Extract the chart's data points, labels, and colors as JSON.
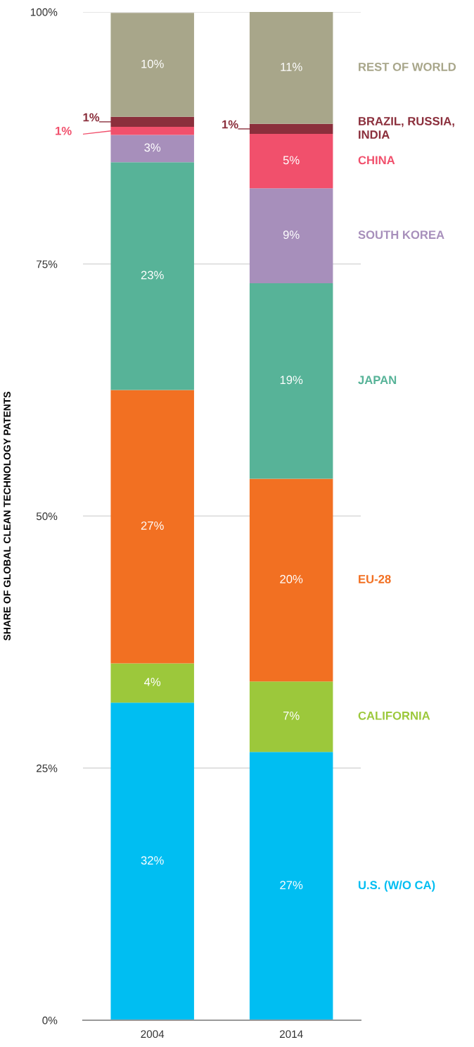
{
  "chart_data": {
    "type": "bar",
    "stacked": true,
    "ylabel": "SHARE OF GLOBAL CLEAN TECHNOLOGY PATENTS",
    "categories": [
      "2004",
      "2014"
    ],
    "ylim": [
      0,
      100
    ],
    "yticks": [
      {
        "value": 0,
        "label": "0%"
      },
      {
        "value": 25,
        "label": "25%"
      },
      {
        "value": 50,
        "label": "50%"
      },
      {
        "value": 75,
        "label": "75%"
      },
      {
        "value": 100,
        "label": "100%"
      }
    ],
    "grid": "y",
    "series": [
      {
        "name": "U.S. (W/O CA)",
        "color": "#00bef2",
        "values": [
          31.5,
          26.6
        ],
        "value_labels": [
          "32%",
          "27%"
        ]
      },
      {
        "name": "CALIFORNIA",
        "color": "#9cc83b",
        "values": [
          3.9,
          7.0
        ],
        "value_labels": [
          "4%",
          "7%"
        ]
      },
      {
        "name": "EU-28",
        "color": "#f27022",
        "values": [
          27.1,
          20.1
        ],
        "value_labels": [
          "27%",
          "20%"
        ]
      },
      {
        "name": "JAPAN",
        "color": "#57b398",
        "values": [
          22.6,
          19.4
        ],
        "value_labels": [
          "23%",
          "19%"
        ]
      },
      {
        "name": "SOUTH KOREA",
        "color": "#a78fbb",
        "values": [
          2.7,
          9.4
        ],
        "value_labels": [
          "3%",
          "9%"
        ]
      },
      {
        "name": "CHINA",
        "color": "#f1506c",
        "values": [
          0.8,
          5.4
        ],
        "value_labels": [
          "1%",
          "5%"
        ]
      },
      {
        "name": "BRAZIL, RUSSIA,\nINDIA",
        "color": "#8b2f3c",
        "values": [
          1.0,
          1.0
        ],
        "value_labels": [
          "1%",
          "1%"
        ]
      },
      {
        "name": "REST OF WORLD",
        "color": "#a8a68a",
        "values": [
          10.3,
          11.1
        ],
        "value_labels": [
          "10%",
          "11%"
        ]
      }
    ]
  }
}
